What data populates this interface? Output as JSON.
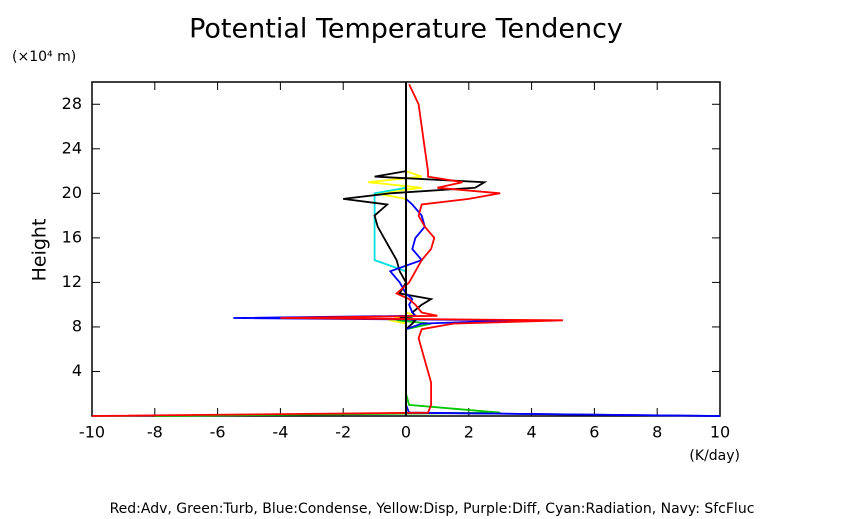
{
  "chart_data": {
    "type": "line",
    "title": "Potential Temperature Tendency",
    "y_label": "Height",
    "y_unit": "(×10⁴ m)",
    "x_unit": "(K/day)",
    "caption": "Red:Adv, Green:Turb, Blue:Condense, Yellow:Disp, Purple:Diff, Cyan:Radiation, Navy: SfcFluc",
    "xlim": [
      -10,
      10
    ],
    "ylim": [
      0,
      30
    ],
    "xticks": [
      -10,
      -8,
      -6,
      -4,
      -2,
      0,
      2,
      4,
      6,
      8,
      10
    ],
    "yticks": [
      4,
      8,
      12,
      16,
      20,
      24,
      28
    ],
    "heights": [
      0,
      0.3,
      1,
      2,
      3,
      4,
      5,
      6,
      7,
      7.8,
      8.3,
      8.6,
      8.8,
      9,
      9.3,
      10,
      10.5,
      11,
      12,
      13,
      14,
      15,
      16,
      17,
      18,
      19,
      19.5,
      20,
      20.5,
      21,
      21.5,
      22,
      24,
      26,
      28,
      29.8
    ],
    "series": [
      {
        "color": "#00c800",
        "values": [
          -8,
          3,
          0.1,
          0,
          0,
          0,
          0,
          0,
          0,
          0,
          0.8,
          -0.3,
          0.2,
          0,
          0,
          0,
          0,
          0,
          0,
          0,
          0,
          0,
          0,
          0,
          0,
          0,
          0,
          0,
          0,
          0,
          0,
          0,
          0,
          0,
          0,
          0
        ]
      },
      {
        "color": "#ffff00",
        "values": [
          0,
          0,
          0,
          0,
          0,
          0,
          0,
          0,
          0,
          0,
          0,
          -0.5,
          -0.3,
          0.3,
          0,
          0,
          0,
          0,
          0,
          0,
          0,
          0,
          0,
          0,
          0,
          0,
          0,
          -1.0,
          0.5,
          -1.2,
          0.5,
          0,
          0,
          0,
          0,
          0
        ]
      },
      {
        "color": "#00e0e0",
        "values": [
          0,
          0,
          0,
          0,
          0,
          0,
          0,
          0,
          0,
          0,
          0,
          0,
          0,
          0,
          0,
          0,
          0,
          0,
          0,
          0,
          -1,
          -1,
          -1,
          -1,
          -1,
          -1,
          -1,
          -1,
          0,
          0,
          0,
          0,
          0,
          0,
          0,
          0
        ]
      },
      {
        "color": "#000000",
        "values": [
          0,
          0,
          0,
          0,
          0,
          0,
          0,
          0,
          0,
          0,
          0.2,
          0.3,
          -0.2,
          0.3,
          0.2,
          0.5,
          0.8,
          -0.2,
          0,
          -0.2,
          -0.3,
          -0.5,
          -0.7,
          -0.9,
          -1.0,
          -0.6,
          -2.0,
          -0.5,
          2.2,
          2.5,
          -1.0,
          0,
          0,
          0,
          0,
          0
        ]
      },
      {
        "color": "#000080",
        "values": [
          10,
          0,
          0,
          0,
          0,
          0,
          0,
          0,
          0,
          0,
          0,
          0,
          0,
          0,
          0,
          0,
          0,
          0,
          0,
          0,
          0,
          0,
          0,
          0,
          0,
          0,
          0,
          0,
          0,
          0,
          0,
          0,
          0,
          0,
          0,
          0
        ]
      },
      {
        "color": "#0000ff",
        "values": [
          10,
          0.1,
          0,
          0,
          0,
          0,
          0,
          0,
          0,
          0,
          0.5,
          3.5,
          -5.5,
          0.3,
          0.2,
          0.1,
          0.2,
          0,
          -0.2,
          -0.5,
          0.5,
          0.2,
          0.3,
          0.6,
          0.5,
          0.2,
          0,
          0,
          0,
          0,
          0,
          0,
          0,
          0,
          0,
          0
        ]
      },
      {
        "color": "#ff0000",
        "values": [
          -10,
          0.7,
          0.8,
          0.8,
          0.8,
          0.7,
          0.6,
          0.5,
          0.4,
          0.5,
          1.5,
          5.0,
          -4.0,
          1.0,
          0.5,
          0.3,
          0.1,
          -0.3,
          0.1,
          0.3,
          0.5,
          0.8,
          0.9,
          0.6,
          0.4,
          0.5,
          2.0,
          3.0,
          1.0,
          1.8,
          0.7,
          0.7,
          0.6,
          0.5,
          0.4,
          0.1
        ]
      }
    ]
  }
}
